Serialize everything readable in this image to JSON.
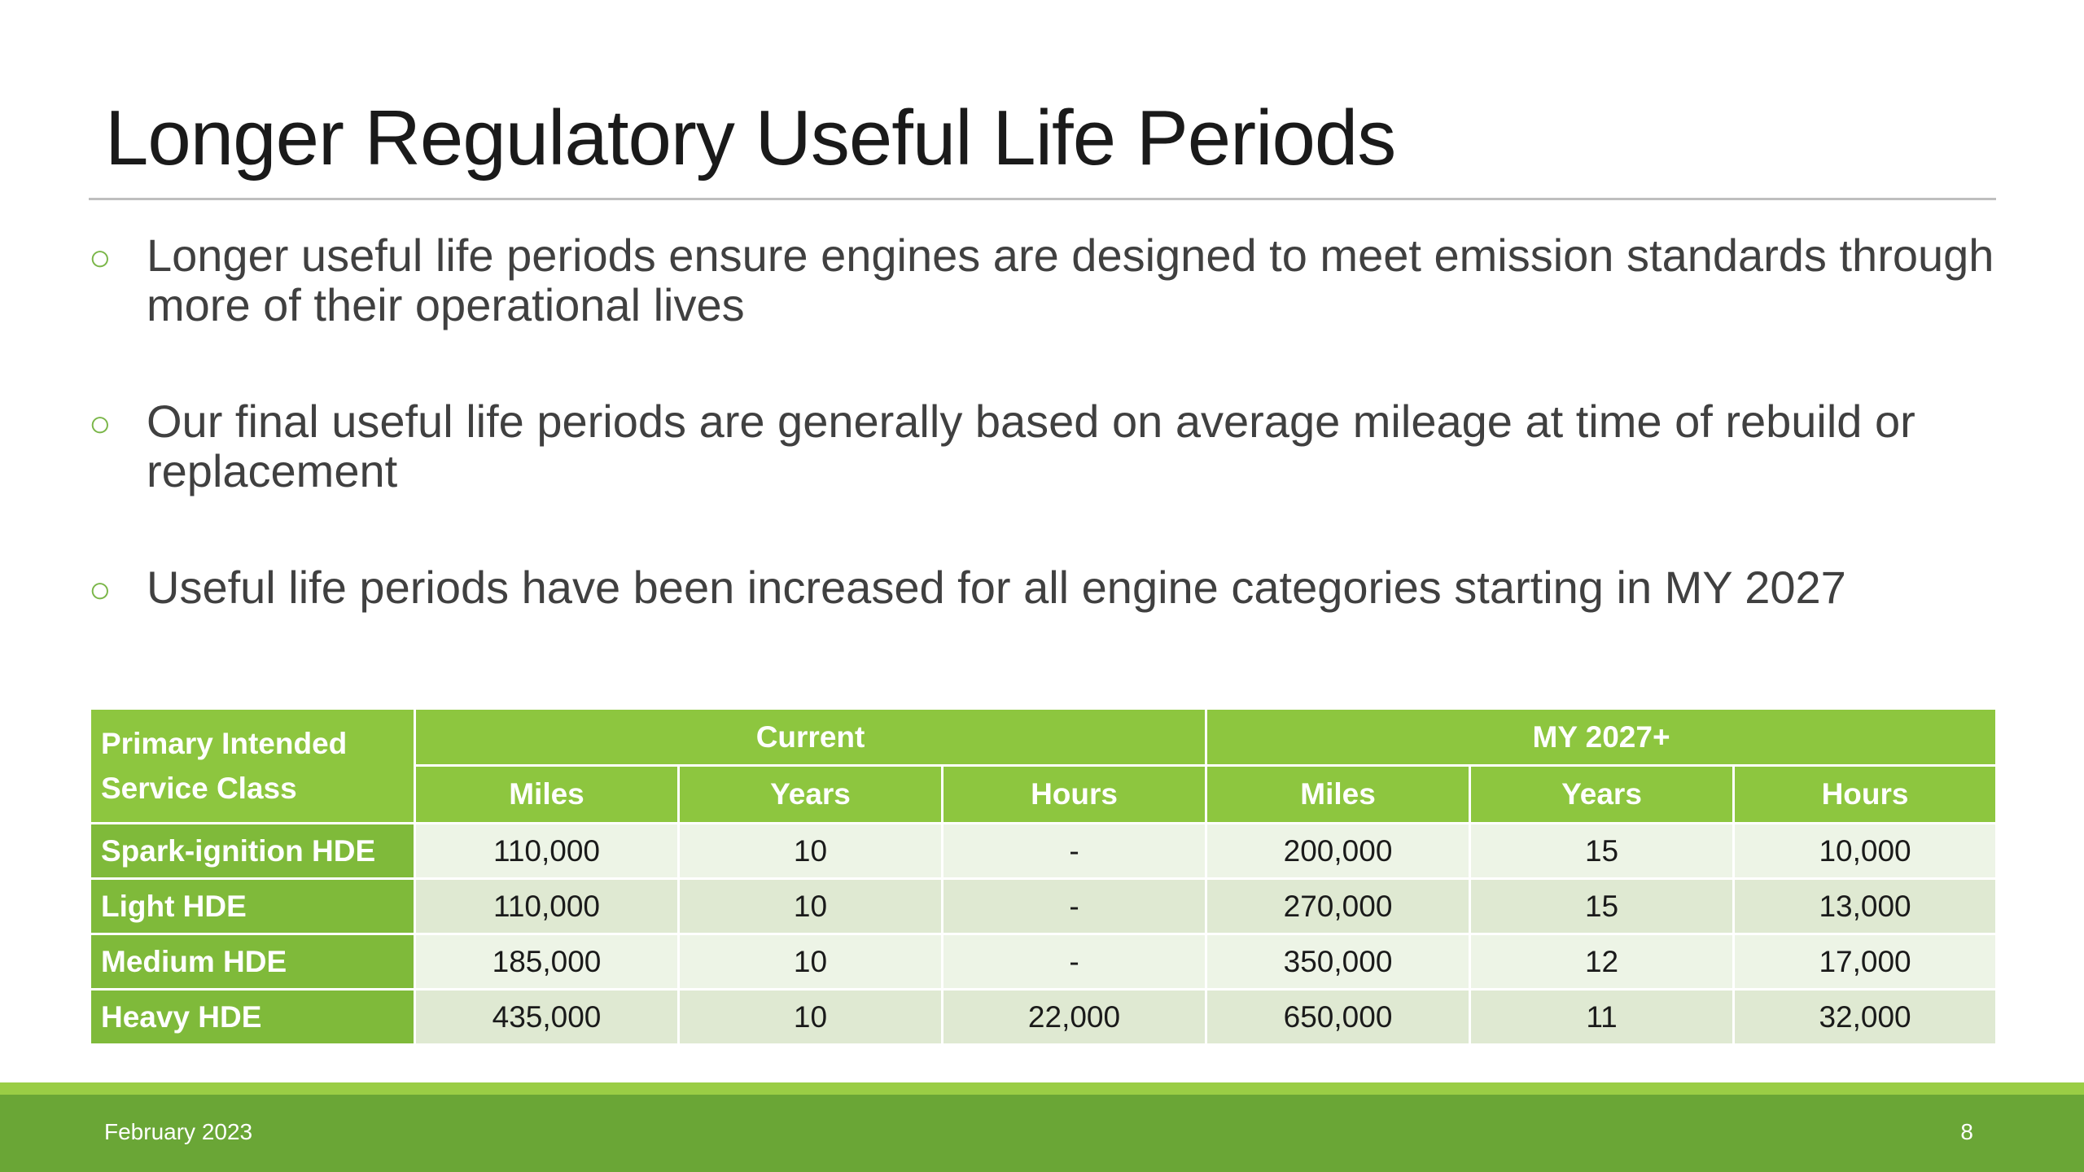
{
  "slide": {
    "title": "Longer Regulatory Useful Life Periods",
    "bullets": [
      "Longer useful life periods ensure engines are designed to meet emission standards through more of their operational lives",
      "Our final useful life periods are generally based on average mileage at time of rebuild or replacement",
      "Useful life periods have been increased for all engine categories starting in MY 2027"
    ],
    "bullet_marker": "○"
  },
  "table": {
    "corner_label": "Primary Intended Service Class",
    "groups": [
      "Current",
      "MY 2027+"
    ],
    "subheaders": [
      "Miles",
      "Years",
      "Hours",
      "Miles",
      "Years",
      "Hours"
    ],
    "rows": [
      {
        "label": "Spark-ignition HDE",
        "values": [
          "110,000",
          "10",
          "-",
          "200,000",
          "15",
          "10,000"
        ]
      },
      {
        "label": "Light HDE",
        "values": [
          "110,000",
          "10",
          "-",
          "270,000",
          "15",
          "13,000"
        ]
      },
      {
        "label": "Medium HDE",
        "values": [
          "185,000",
          "10",
          "-",
          "350,000",
          "12",
          "17,000"
        ]
      },
      {
        "label": "Heavy HDE",
        "values": [
          "435,000",
          "10",
          "22,000",
          "650,000",
          "11",
          "32,000"
        ]
      }
    ]
  },
  "footer": {
    "date": "February 2023",
    "page_number": "8"
  },
  "colors": {
    "accent_green": "#8dc63f",
    "footer_green": "#6aa636",
    "stripe_green": "#9acd45",
    "row_light": "#edf4e6",
    "row_dark": "#dfe9d2"
  }
}
